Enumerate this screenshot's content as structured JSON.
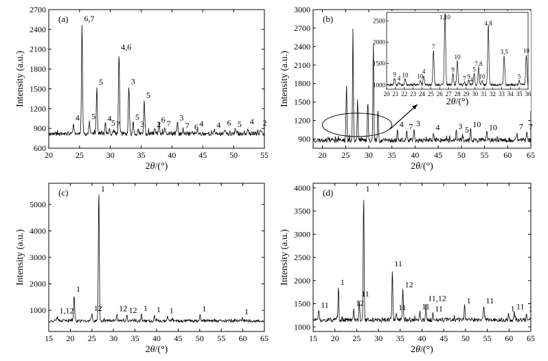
{
  "chart_data": [
    {
      "panel": "(a)",
      "type": "line",
      "xlabel": "2θ/(°)",
      "ylabel": "Intensity (a.u.)",
      "xlim": [
        20,
        55
      ],
      "ylim": [
        600,
        2700
      ],
      "xticks": [
        20,
        25,
        30,
        35,
        40,
        45,
        50,
        55
      ],
      "yticks": [
        600,
        900,
        1200,
        1500,
        1800,
        2100,
        2400,
        2700
      ],
      "baseline": 820,
      "peaks": [
        {
          "x": 24.0,
          "y": 980,
          "label": "4"
        },
        {
          "x": 25.4,
          "y": 2480,
          "label": "6,7"
        },
        {
          "x": 26.6,
          "y": 1000,
          "label": "5"
        },
        {
          "x": 27.8,
          "y": 1520,
          "label": "5"
        },
        {
          "x": 29.2,
          "y": 970,
          "label": "4"
        },
        {
          "x": 29.8,
          "y": 900,
          "label": "5"
        },
        {
          "x": 30.6,
          "y": 880,
          "label": "7"
        },
        {
          "x": 31.4,
          "y": 2050,
          "label": "4,6"
        },
        {
          "x": 33.0,
          "y": 1530,
          "label": "3"
        },
        {
          "x": 33.7,
          "y": 990,
          "label": "5"
        },
        {
          "x": 35.5,
          "y": 1320,
          "label": "5"
        },
        {
          "x": 34.5,
          "y": 880,
          "label": "3"
        },
        {
          "x": 37.2,
          "y": 880,
          "label": "2"
        },
        {
          "x": 37.9,
          "y": 950,
          "label": "6"
        },
        {
          "x": 38.8,
          "y": 890,
          "label": "7"
        },
        {
          "x": 40.9,
          "y": 980,
          "label": "3"
        },
        {
          "x": 41.8,
          "y": 860,
          "label": "7"
        },
        {
          "x": 43.3,
          "y": 840,
          "label": "6"
        },
        {
          "x": 44.1,
          "y": 890,
          "label": "4"
        },
        {
          "x": 46.9,
          "y": 870,
          "label": "4"
        },
        {
          "x": 48.6,
          "y": 900,
          "label": "6"
        },
        {
          "x": 50.3,
          "y": 880,
          "label": "5"
        },
        {
          "x": 52.3,
          "y": 920,
          "label": "4"
        },
        {
          "x": 54.4,
          "y": 900,
          "label": "2"
        }
      ]
    },
    {
      "panel": "(b)",
      "type": "line",
      "xlabel": "2θ/(°)",
      "ylabel": "Intensity (a.u.)",
      "xlim": [
        18,
        65
      ],
      "ylim": [
        750,
        3000
      ],
      "xticks": [
        20,
        25,
        30,
        35,
        40,
        45,
        50,
        55,
        60,
        65
      ],
      "yticks": [
        900,
        1200,
        1500,
        1800,
        2100,
        2400,
        2700,
        3000
      ],
      "baseline": 880,
      "peaks": [
        {
          "x": 25.2,
          "y": 1800
        },
        {
          "x": 26.6,
          "y": 2720
        },
        {
          "x": 27.6,
          "y": 1580
        },
        {
          "x": 29.8,
          "y": 1550
        },
        {
          "x": 31.0,
          "y": 2480
        },
        {
          "x": 32.0,
          "y": 1400
        },
        {
          "x": 36.2,
          "y": 1050,
          "label": "4"
        },
        {
          "x": 38.2,
          "y": 1010,
          "label": "7"
        },
        {
          "x": 39.8,
          "y": 1060,
          "label": "3"
        },
        {
          "x": 44.0,
          "y": 1000,
          "label": "4"
        },
        {
          "x": 48.9,
          "y": 1020,
          "label": "3"
        },
        {
          "x": 50.3,
          "y": 960,
          "label": "5"
        },
        {
          "x": 52.0,
          "y": 1050,
          "label": "10"
        },
        {
          "x": 55.5,
          "y": 1000,
          "label": "10"
        },
        {
          "x": 62.0,
          "y": 1010,
          "label": "7"
        },
        {
          "x": 64.1,
          "y": 1010,
          "label": "7"
        }
      ],
      "inset": {
        "xlabel": "2θ/(°)",
        "xlim": [
          20,
          36
        ],
        "ylim": [
          900,
          2700
        ],
        "xticks": [
          20,
          21,
          22,
          23,
          24,
          25,
          26,
          27,
          28,
          29,
          30,
          31,
          32,
          33,
          34,
          35,
          36
        ],
        "yticks": [
          1000,
          1500,
          2000,
          2500
        ],
        "baseline": 1000,
        "peaks": [
          {
            "x": 20.9,
            "y": 1150,
            "label": "9"
          },
          {
            "x": 21.4,
            "y": 1050,
            "label": "4"
          },
          {
            "x": 22.1,
            "y": 1130,
            "label": "10"
          },
          {
            "x": 23.8,
            "y": 1100,
            "label": "10"
          },
          {
            "x": 24.2,
            "y": 1220,
            "label": "4"
          },
          {
            "x": 25.3,
            "y": 1800,
            "label": "7"
          },
          {
            "x": 26.6,
            "y": 2700,
            "label": "1,10"
          },
          {
            "x": 27.5,
            "y": 1260,
            "label": "9"
          },
          {
            "x": 28.0,
            "y": 1560,
            "label": "10"
          },
          {
            "x": 28.8,
            "y": 1050,
            "label": "7"
          },
          {
            "x": 29.3,
            "y": 1100,
            "label": "9"
          },
          {
            "x": 29.6,
            "y": 1020,
            "label": "4"
          },
          {
            "x": 29.9,
            "y": 1260,
            "label": "5"
          },
          {
            "x": 30.4,
            "y": 1400,
            "label": "7,8"
          },
          {
            "x": 30.8,
            "y": 1100,
            "label": "10"
          },
          {
            "x": 31.5,
            "y": 2350,
            "label": "4,8"
          },
          {
            "x": 33.3,
            "y": 1680,
            "label": "3,5"
          },
          {
            "x": 35.0,
            "y": 1100,
            "label": "5"
          },
          {
            "x": 35.8,
            "y": 1700,
            "label": "10"
          }
        ]
      }
    },
    {
      "panel": "(c)",
      "type": "line",
      "xlabel": "2θ/(°)",
      "ylabel": "Intensity (a.u.)",
      "xlim": [
        15,
        65
      ],
      "ylim": [
        200,
        5800
      ],
      "xticks": [
        15,
        20,
        25,
        30,
        35,
        40,
        45,
        50,
        55,
        60,
        65
      ],
      "yticks": [
        1000,
        2000,
        3000,
        4000,
        5000
      ],
      "baseline": 600,
      "peaks": [
        {
          "x": 17.0,
          "y": 780,
          "label": "1,12"
        },
        {
          "x": 20.9,
          "y": 1600,
          "label": "1"
        },
        {
          "x": 25.0,
          "y": 880,
          "label": "12"
        },
        {
          "x": 26.6,
          "y": 5550,
          "label": "1"
        },
        {
          "x": 30.8,
          "y": 860,
          "label": "12"
        },
        {
          "x": 33.1,
          "y": 800,
          "label": "12"
        },
        {
          "x": 36.5,
          "y": 880,
          "label": "1"
        },
        {
          "x": 39.5,
          "y": 820,
          "label": "1"
        },
        {
          "x": 42.5,
          "y": 780,
          "label": "1"
        },
        {
          "x": 50.1,
          "y": 860,
          "label": "1"
        },
        {
          "x": 59.9,
          "y": 740,
          "label": "1"
        }
      ]
    },
    {
      "panel": "(d)",
      "type": "line",
      "xlabel": "2θ/(°)",
      "ylabel": "Intensity (a.u.)",
      "xlim": [
        15,
        65
      ],
      "ylim": [
        900,
        4100
      ],
      "xticks": [
        15,
        20,
        25,
        30,
        35,
        40,
        45,
        50,
        55,
        60,
        65
      ],
      "yticks": [
        1000,
        1500,
        2000,
        2500,
        3000,
        3500,
        4000
      ],
      "baseline": 1150,
      "peaks": [
        {
          "x": 16.3,
          "y": 1350,
          "label": "11"
        },
        {
          "x": 20.8,
          "y": 1850,
          "label": "1"
        },
        {
          "x": 24.3,
          "y": 1400,
          "label": "12"
        },
        {
          "x": 25.6,
          "y": 1600,
          "label": "11"
        },
        {
          "x": 26.6,
          "y": 3950,
          "label": "1"
        },
        {
          "x": 33.2,
          "y": 2250,
          "label": "11"
        },
        {
          "x": 34.1,
          "y": 1300,
          "label": "11"
        },
        {
          "x": 35.6,
          "y": 1800,
          "label": "12"
        },
        {
          "x": 39.5,
          "y": 1320,
          "label": "11"
        },
        {
          "x": 40.9,
          "y": 1500,
          "label": "11,12"
        },
        {
          "x": 42.5,
          "y": 1280,
          "label": "11"
        },
        {
          "x": 49.8,
          "y": 1450,
          "label": "1"
        },
        {
          "x": 54.2,
          "y": 1450,
          "label": "11"
        },
        {
          "x": 59.9,
          "y": 1280,
          "label": "1"
        },
        {
          "x": 61.2,
          "y": 1320,
          "label": "11"
        },
        {
          "x": 64.0,
          "y": 1270,
          "label": "1"
        }
      ]
    }
  ]
}
